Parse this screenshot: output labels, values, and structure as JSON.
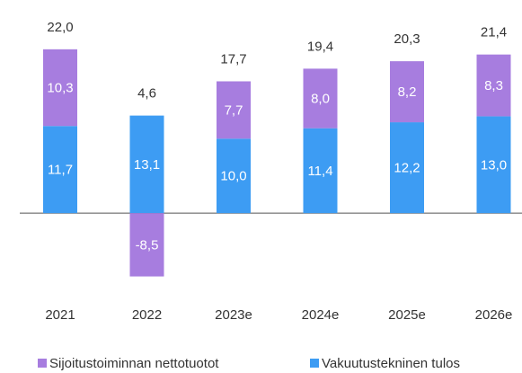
{
  "chart_data": {
    "type": "bar",
    "stacked": true,
    "categories": [
      "2021",
      "2022",
      "2023e",
      "2024e",
      "2025e",
      "2026e"
    ],
    "series": [
      {
        "name": "Vakuutustekninen tulos",
        "color": "#3d9cf3",
        "values": [
          11.7,
          13.1,
          10.0,
          11.4,
          12.2,
          13.0
        ],
        "value_labels": [
          "11,7",
          "13,1",
          "10,0",
          "11,4",
          "12,2",
          "13,0"
        ]
      },
      {
        "name": "Sijoitustoiminnan nettotuotot",
        "color": "#a77ddf",
        "values": [
          10.3,
          -8.5,
          7.7,
          8.0,
          8.2,
          8.3
        ],
        "value_labels": [
          "10,3",
          "-8,5",
          "7,7",
          "8,0",
          "8,2",
          "8,3"
        ]
      }
    ],
    "totals": [
      22.0,
      4.6,
      17.7,
      19.4,
      20.3,
      21.4
    ],
    "total_labels": [
      "22,0",
      "4,6",
      "17,7",
      "19,4",
      "20,3",
      "21,4"
    ],
    "ylim": [
      -10,
      25
    ]
  }
}
